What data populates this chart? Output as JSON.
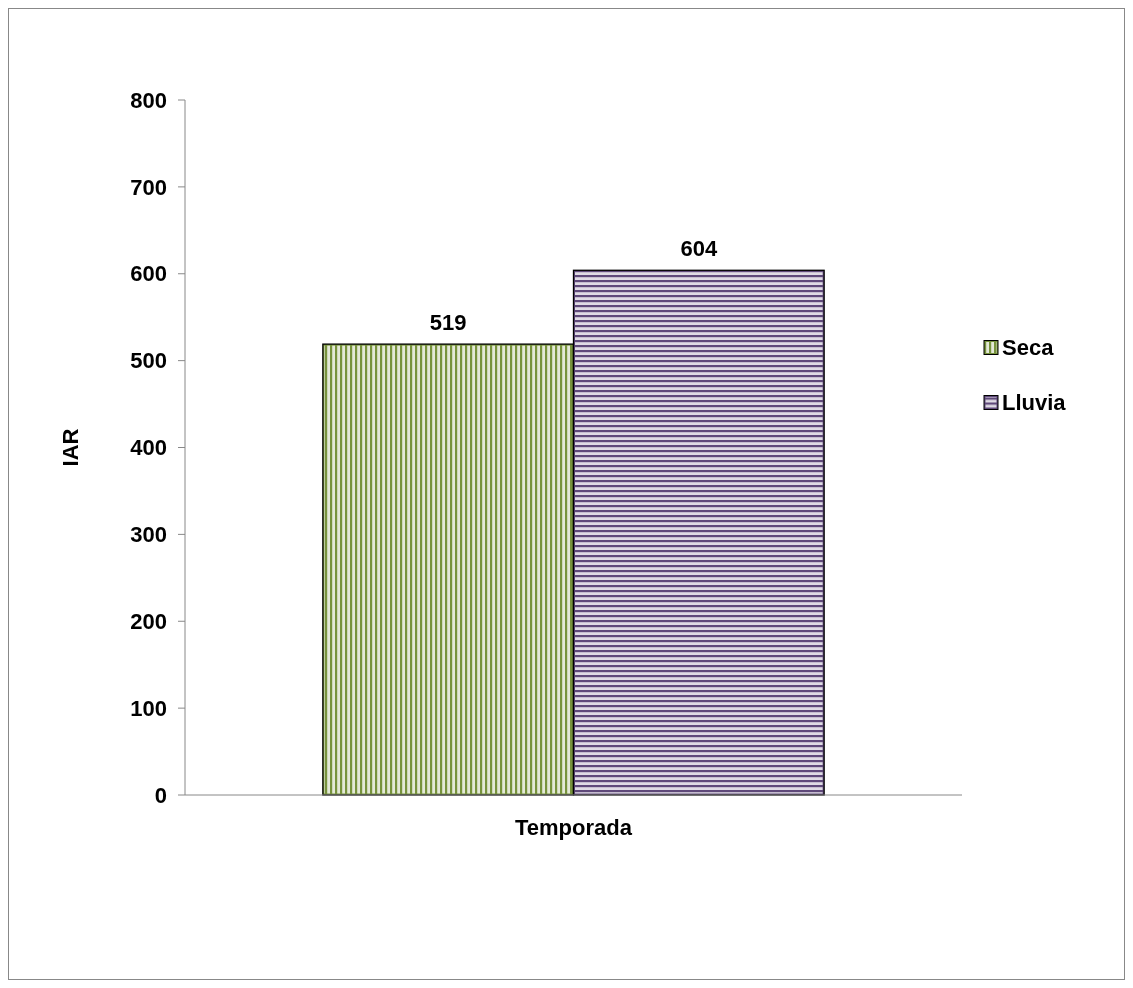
{
  "chart_data": {
    "type": "bar",
    "categories": [
      "Temporada"
    ],
    "ylabel": "IAR",
    "series": [
      {
        "name": "Seca",
        "color": "#77933c",
        "values": [
          519
        ]
      },
      {
        "name": "Lluvia",
        "color": "#5f497a",
        "values": [
          604
        ]
      }
    ],
    "ylim": [
      0,
      800
    ],
    "yticks": [
      0,
      100,
      200,
      300,
      400,
      500,
      600,
      700,
      800
    ],
    "data_labels": true,
    "legend": "right",
    "grid": false
  }
}
